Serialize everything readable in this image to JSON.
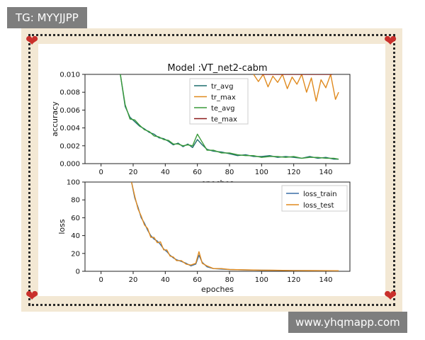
{
  "watermarks": {
    "top_left": "TG: MYYJJPP",
    "bottom_right": "www.yhqmapp.com"
  },
  "chart_data": [
    {
      "type": "line",
      "title": "Model :VT_net2-cabm",
      "xlabel": "epoches",
      "ylabel": "accuracy",
      "xlim": [
        -10,
        155
      ],
      "ylim": [
        0,
        0.01
      ],
      "xticks": [
        "0",
        "20",
        "40",
        "60",
        "80",
        "100",
        "120",
        "140"
      ],
      "xtick_values": [
        0,
        20,
        40,
        60,
        80,
        100,
        120,
        140
      ],
      "yticks": [
        "0.000",
        "0.002",
        "0.004",
        "0.006",
        "0.008",
        "0.010"
      ],
      "ytick_values": [
        0,
        0.002,
        0.004,
        0.006,
        0.008,
        0.01
      ],
      "legend_position": "upper-center",
      "series": [
        {
          "name": "tr_avg",
          "color": "#1f6f6e",
          "x": [
            12,
            15,
            18,
            21,
            24,
            27,
            30,
            33,
            36,
            39,
            42,
            45,
            48,
            51,
            54,
            57,
            60,
            63,
            66,
            70,
            75,
            80,
            85,
            90,
            95,
            100,
            105,
            110,
            115,
            120,
            125,
            130,
            135,
            140,
            145,
            148
          ],
          "y": [
            0.0101,
            0.0064,
            0.0052,
            0.0047,
            0.0042,
            0.0039,
            0.0035,
            0.0033,
            0.0029,
            0.0028,
            0.0025,
            0.0021,
            0.0023,
            0.0019,
            0.0022,
            0.0018,
            0.0027,
            0.0021,
            0.0016,
            0.0014,
            0.0013,
            0.0011,
            0.0009,
            0.001,
            0.0008,
            0.0008,
            0.0009,
            0.0007,
            0.0008,
            0.0007,
            0.0006,
            0.0008,
            0.0006,
            0.0007,
            0.0005,
            0.0005
          ]
        },
        {
          "name": "tr_max",
          "color": "#e08a1e",
          "x": [
            95,
            98,
            101,
            104,
            107,
            110,
            113,
            116,
            119,
            122,
            125,
            128,
            131,
            134,
            137,
            140,
            143,
            146,
            148
          ],
          "y": [
            0.0102,
            0.0092,
            0.0101,
            0.0086,
            0.0098,
            0.0091,
            0.0101,
            0.0084,
            0.0097,
            0.0089,
            0.0101,
            0.008,
            0.0096,
            0.007,
            0.0094,
            0.0085,
            0.0101,
            0.0072,
            0.008
          ]
        },
        {
          "name": "te_avg",
          "color": "#3a9a3a",
          "x": [
            12,
            15,
            18,
            21,
            24,
            27,
            30,
            33,
            36,
            39,
            42,
            45,
            48,
            51,
            54,
            57,
            60,
            63,
            66,
            70,
            75,
            80,
            85,
            90,
            95,
            100,
            105,
            110,
            115,
            120,
            125,
            130,
            135,
            140,
            145,
            148
          ],
          "y": [
            0.0101,
            0.0066,
            0.005,
            0.0049,
            0.0043,
            0.0038,
            0.0036,
            0.0031,
            0.003,
            0.0027,
            0.0026,
            0.0022,
            0.0022,
            0.002,
            0.0021,
            0.002,
            0.0033,
            0.0024,
            0.0015,
            0.0015,
            0.0012,
            0.0012,
            0.001,
            0.0009,
            0.0009,
            0.0007,
            0.0008,
            0.0008,
            0.0007,
            0.0008,
            0.0006,
            0.0007,
            0.0007,
            0.0006,
            0.0006,
            0.0005
          ]
        },
        {
          "name": "te_max",
          "color": "#8b1a1a",
          "x": [
            100,
            104,
            112,
            120,
            128,
            136,
            144
          ],
          "y": [
            0.0101,
            0.01,
            0.0101,
            0.01,
            0.0101,
            0.01,
            0.0101
          ]
        }
      ]
    },
    {
      "type": "line",
      "title": "",
      "xlabel": "epoches",
      "ylabel": "loss",
      "xlim": [
        -10,
        155
      ],
      "ylim": [
        0,
        100
      ],
      "xticks": [
        "0",
        "20",
        "40",
        "60",
        "80",
        "100",
        "120",
        "140"
      ],
      "xtick_values": [
        0,
        20,
        40,
        60,
        80,
        100,
        120,
        140
      ],
      "yticks": [
        "0",
        "20",
        "40",
        "60",
        "80",
        "100"
      ],
      "ytick_values": [
        0,
        20,
        40,
        60,
        80,
        100
      ],
      "legend_position": "upper-right",
      "series": [
        {
          "name": "loss_train",
          "color": "#3a6ea5",
          "x": [
            19,
            21,
            23,
            25,
            27,
            29,
            31,
            33,
            35,
            37,
            39,
            41,
            43,
            45,
            47,
            50,
            53,
            56,
            59,
            61,
            63,
            66,
            70,
            75,
            80,
            90,
            100,
            110,
            120,
            130,
            140,
            148
          ],
          "y": [
            100,
            82,
            72,
            60,
            54,
            46,
            40,
            36,
            34,
            30,
            25,
            22,
            18,
            15,
            13,
            11,
            9,
            6,
            8,
            18,
            10,
            5,
            3,
            2.5,
            2,
            1.5,
            1.2,
            1,
            0.8,
            0.7,
            0.6,
            0.5
          ]
        },
        {
          "name": "loss_test",
          "color": "#e08a1e",
          "x": [
            19,
            21,
            23,
            25,
            27,
            29,
            31,
            33,
            35,
            37,
            39,
            41,
            43,
            45,
            47,
            50,
            53,
            56,
            59,
            61,
            63,
            66,
            70,
            75,
            80,
            90,
            100,
            110,
            120,
            130,
            140,
            148
          ],
          "y": [
            100,
            84,
            70,
            62,
            52,
            48,
            38,
            38,
            32,
            33,
            24,
            24,
            17,
            16,
            12,
            12,
            8,
            7,
            9,
            22,
            9,
            6,
            3,
            3,
            2,
            1.6,
            1.3,
            1.1,
            0.9,
            0.8,
            0.7,
            0.6
          ]
        }
      ]
    }
  ]
}
